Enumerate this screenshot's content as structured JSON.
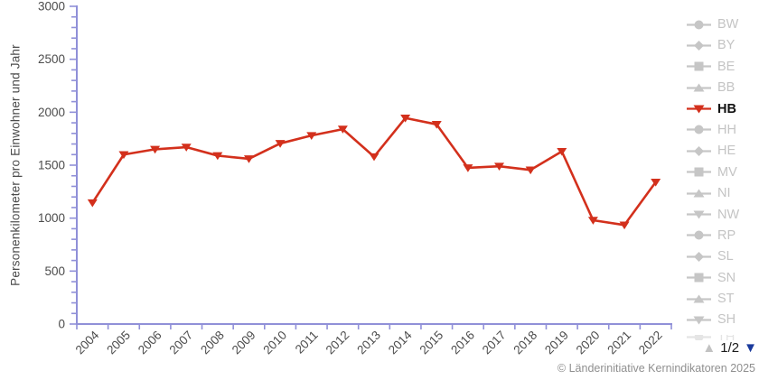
{
  "chart_data": {
    "type": "line",
    "title": "",
    "xlabel": "",
    "ylabel": "Personenkilometer pro Einwohner und Jahr",
    "ylim": [
      0,
      3000
    ],
    "y_major_ticks": [
      0,
      500,
      1000,
      1500,
      2000,
      2500,
      3000
    ],
    "y_minor_step": 100,
    "grid": false,
    "legend_position": "right",
    "categories": [
      "2004",
      "2005",
      "2006",
      "2007",
      "2008",
      "2009",
      "2010",
      "2011",
      "2012",
      "2013",
      "2014",
      "2015",
      "2016",
      "2017",
      "2018",
      "2019",
      "2020",
      "2021",
      "2022"
    ],
    "series": [
      {
        "name": "HB",
        "marker": "triangle-down",
        "color": "#d3301c",
        "values": [
          1145,
          1600,
          1650,
          1670,
          1590,
          1560,
          1705,
          1780,
          1840,
          1580,
          1945,
          1885,
          1475,
          1490,
          1455,
          1630,
          980,
          935,
          1340
        ]
      }
    ]
  },
  "legend": {
    "items": [
      {
        "label": "BW",
        "shape": "circle",
        "active": false
      },
      {
        "label": "BY",
        "shape": "diamond",
        "active": false
      },
      {
        "label": "BE",
        "shape": "square",
        "active": false
      },
      {
        "label": "BB",
        "shape": "triangle-up",
        "active": false
      },
      {
        "label": "HB",
        "shape": "triangle-down",
        "active": true
      },
      {
        "label": "HH",
        "shape": "circle",
        "active": false
      },
      {
        "label": "HE",
        "shape": "diamond",
        "active": false
      },
      {
        "label": "MV",
        "shape": "square",
        "active": false
      },
      {
        "label": "NI",
        "shape": "triangle-up",
        "active": false
      },
      {
        "label": "NW",
        "shape": "triangle-down",
        "active": false
      },
      {
        "label": "RP",
        "shape": "circle",
        "active": false
      },
      {
        "label": "SL",
        "shape": "diamond",
        "active": false
      },
      {
        "label": "SN",
        "shape": "square",
        "active": false
      },
      {
        "label": "ST",
        "shape": "triangle-up",
        "active": false
      },
      {
        "label": "SH",
        "shape": "triangle-down",
        "active": false
      },
      {
        "label": "TH",
        "shape": "circle",
        "active": false,
        "partial": true
      }
    ],
    "pagination": {
      "page_label": "1/2",
      "up_icon": "▲",
      "down_icon": "▼"
    }
  },
  "footer": {
    "copyright": "© Länderinitiative Kernindikatoren 2025"
  },
  "colors": {
    "series": "#d3301c",
    "axis": "#9090d8",
    "tick_label": "#4c4c4c",
    "legend_gray": "#c6c6c6",
    "legend_active_text": "#111111",
    "pager_up": "#c2c2c2",
    "pager_down": "#1a3a9c",
    "copyright": "#8f8f8f",
    "background": "#ffffff"
  }
}
